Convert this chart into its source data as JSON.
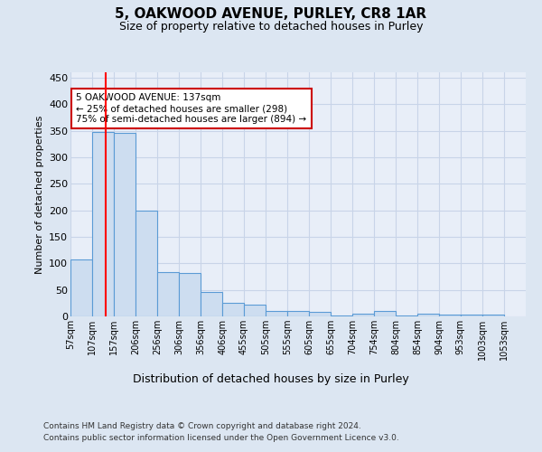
{
  "title": "5, OAKWOOD AVENUE, PURLEY, CR8 1AR",
  "subtitle": "Size of property relative to detached houses in Purley",
  "xlabel": "Distribution of detached houses by size in Purley",
  "ylabel": "Number of detached properties",
  "footer_line1": "Contains HM Land Registry data © Crown copyright and database right 2024.",
  "footer_line2": "Contains public sector information licensed under the Open Government Licence v3.0.",
  "bar_left_edges": [
    57,
    107,
    157,
    206,
    256,
    306,
    356,
    406,
    455,
    505,
    555,
    605,
    655,
    704,
    754,
    804,
    854,
    904,
    953,
    1003
  ],
  "bar_heights": [
    107,
    348,
    345,
    200,
    83,
    82,
    46,
    25,
    22,
    11,
    10,
    9,
    1,
    5,
    10,
    1,
    5,
    3,
    3,
    3
  ],
  "bar_widths": [
    50,
    50,
    49,
    50,
    50,
    50,
    50,
    49,
    50,
    50,
    50,
    50,
    49,
    50,
    50,
    50,
    50,
    49,
    50,
    50
  ],
  "bar_color": "#cdddf0",
  "bar_edge_color": "#5b9bd5",
  "bg_color": "#dce6f2",
  "plot_bg_color": "#e8eef8",
  "grid_color": "#c8d4e8",
  "red_line_x": 137,
  "annotation_text": "5 OAKWOOD AVENUE: 137sqm\n← 25% of detached houses are smaller (298)\n75% of semi-detached houses are larger (894) →",
  "annotation_box_color": "#ffffff",
  "annotation_box_edge": "#cc0000",
  "annotation_font_size": 7.5,
  "ylim": [
    0,
    460
  ],
  "yticks": [
    0,
    50,
    100,
    150,
    200,
    250,
    300,
    350,
    400,
    450
  ],
  "tick_labels": [
    "57sqm",
    "107sqm",
    "157sqm",
    "206sqm",
    "256sqm",
    "306sqm",
    "356sqm",
    "406sqm",
    "455sqm",
    "505sqm",
    "555sqm",
    "605sqm",
    "655sqm",
    "704sqm",
    "754sqm",
    "804sqm",
    "854sqm",
    "904sqm",
    "953sqm",
    "1003sqm",
    "1053sqm"
  ],
  "tick_positions": [
    57,
    107,
    157,
    206,
    256,
    306,
    356,
    406,
    455,
    505,
    555,
    605,
    655,
    704,
    754,
    804,
    854,
    904,
    953,
    1003,
    1053
  ]
}
